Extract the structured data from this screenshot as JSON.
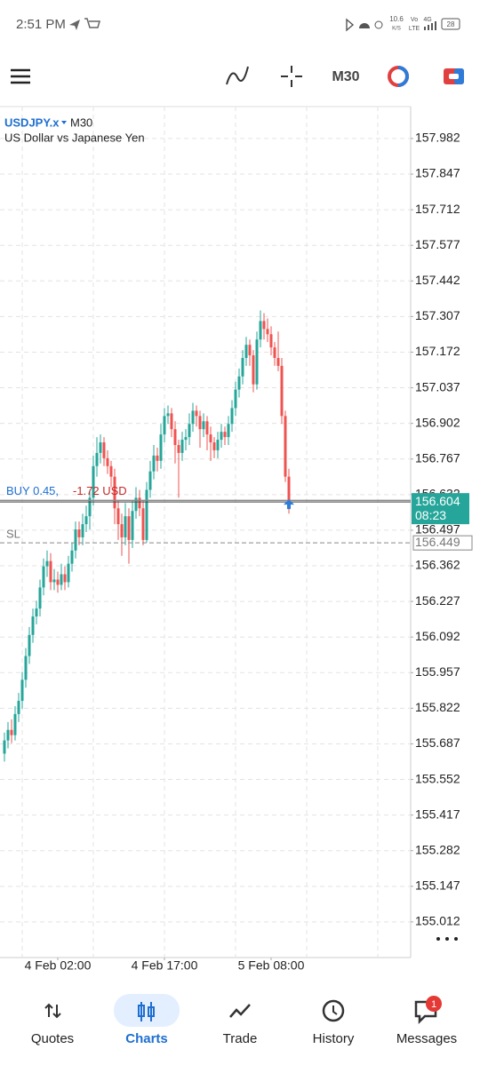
{
  "status_bar": {
    "time": "2:51 PM",
    "speed": "10.6",
    "speed_unit": "K/S",
    "volte_top": "Vo",
    "volte_bottom": "LTE",
    "network": "4G",
    "battery": "28"
  },
  "toolbar": {
    "timeframe": "M30"
  },
  "chart_data": {
    "type": "candlestick",
    "symbol": "USDJPY.x",
    "period": "M30",
    "subtitle": "US Dollar vs Japanese Yen",
    "up_color": "#26a69a",
    "down_color": "#ef5350",
    "grid": true,
    "candles": [
      [
        155.65,
        155.73,
        155.62,
        155.7
      ],
      [
        155.7,
        155.77,
        155.67,
        155.74
      ],
      [
        155.74,
        155.78,
        155.69,
        155.72
      ],
      [
        155.72,
        155.83,
        155.7,
        155.8
      ],
      [
        155.8,
        155.88,
        155.77,
        155.85
      ],
      [
        155.85,
        155.96,
        155.82,
        155.93
      ],
      [
        155.93,
        156.05,
        155.9,
        156.02
      ],
      [
        156.02,
        156.13,
        155.99,
        156.1
      ],
      [
        156.1,
        156.2,
        156.07,
        156.17
      ],
      [
        156.17,
        156.23,
        156.14,
        156.2
      ],
      [
        156.2,
        156.31,
        156.17,
        156.28
      ],
      [
        156.28,
        156.39,
        156.25,
        156.36
      ],
      [
        156.36,
        156.42,
        156.32,
        156.38
      ],
      [
        156.38,
        156.41,
        156.27,
        156.3
      ],
      [
        156.3,
        156.35,
        156.27,
        156.31
      ],
      [
        156.31,
        156.34,
        156.26,
        156.29
      ],
      [
        156.29,
        156.37,
        156.27,
        156.33
      ],
      [
        156.33,
        156.36,
        156.27,
        156.3
      ],
      [
        156.3,
        156.4,
        156.28,
        156.37
      ],
      [
        156.37,
        156.45,
        156.34,
        156.42
      ],
      [
        156.42,
        156.53,
        156.39,
        156.5
      ],
      [
        156.5,
        156.53,
        156.44,
        156.47
      ],
      [
        156.47,
        156.56,
        156.44,
        156.52
      ],
      [
        156.52,
        156.59,
        156.49,
        156.55
      ],
      [
        156.55,
        156.65,
        156.5,
        156.62
      ],
      [
        156.62,
        156.78,
        156.59,
        156.74
      ],
      [
        156.74,
        156.85,
        156.7,
        156.79
      ],
      [
        156.79,
        156.86,
        156.75,
        156.83
      ],
      [
        156.83,
        156.85,
        156.74,
        156.77
      ],
      [
        156.77,
        156.8,
        156.71,
        156.74
      ],
      [
        156.74,
        156.76,
        156.66,
        156.7
      ],
      [
        156.7,
        156.73,
        156.52,
        156.58
      ],
      [
        156.58,
        156.61,
        156.46,
        156.52
      ],
      [
        156.52,
        156.56,
        156.4,
        156.47
      ],
      [
        156.47,
        156.6,
        156.44,
        156.55
      ],
      [
        156.55,
        156.58,
        156.37,
        156.46
      ],
      [
        156.46,
        156.61,
        156.43,
        156.57
      ],
      [
        156.57,
        156.66,
        156.54,
        156.62
      ],
      [
        156.62,
        156.65,
        156.55,
        156.58
      ],
      [
        156.58,
        156.61,
        156.44,
        156.46
      ],
      [
        156.46,
        156.68,
        156.45,
        156.65
      ],
      [
        156.65,
        156.76,
        156.62,
        156.72
      ],
      [
        156.72,
        156.82,
        156.69,
        156.78
      ],
      [
        156.78,
        156.81,
        156.72,
        156.76
      ],
      [
        156.76,
        156.9,
        156.73,
        156.86
      ],
      [
        156.86,
        156.96,
        156.83,
        156.93
      ],
      [
        156.93,
        156.97,
        156.9,
        156.94
      ],
      [
        156.94,
        156.96,
        156.85,
        156.88
      ],
      [
        156.88,
        156.91,
        156.75,
        156.82
      ],
      [
        156.82,
        156.84,
        156.62,
        156.79
      ],
      [
        156.79,
        156.87,
        156.76,
        156.84
      ],
      [
        156.84,
        156.88,
        156.8,
        156.85
      ],
      [
        156.85,
        156.94,
        156.82,
        156.9
      ],
      [
        156.9,
        156.98,
        156.87,
        156.95
      ],
      [
        156.95,
        156.97,
        156.89,
        156.93
      ],
      [
        156.93,
        156.95,
        156.81,
        156.88
      ],
      [
        156.88,
        156.94,
        156.85,
        156.91
      ],
      [
        156.91,
        156.93,
        156.8,
        156.86
      ],
      [
        156.86,
        156.89,
        156.76,
        156.83
      ],
      [
        156.83,
        156.85,
        156.77,
        156.8
      ],
      [
        156.8,
        156.87,
        156.77,
        156.84
      ],
      [
        156.84,
        156.9,
        156.81,
        156.87
      ],
      [
        156.87,
        156.89,
        156.82,
        156.85
      ],
      [
        156.85,
        156.93,
        156.82,
        156.9
      ],
      [
        156.9,
        156.99,
        156.87,
        156.96
      ],
      [
        156.96,
        157.06,
        156.93,
        157.03
      ],
      [
        157.03,
        157.11,
        157.0,
        157.08
      ],
      [
        157.08,
        157.18,
        157.05,
        157.15
      ],
      [
        157.15,
        157.23,
        157.12,
        157.2
      ],
      [
        157.2,
        157.22,
        157.12,
        157.16
      ],
      [
        157.16,
        157.18,
        157.02,
        157.05
      ],
      [
        157.05,
        157.25,
        157.03,
        157.22
      ],
      [
        157.22,
        157.33,
        157.19,
        157.29
      ],
      [
        157.29,
        157.32,
        157.22,
        157.26
      ],
      [
        157.26,
        157.3,
        157.21,
        157.24
      ],
      [
        157.24,
        157.27,
        157.16,
        157.19
      ],
      [
        157.19,
        157.21,
        157.12,
        157.15
      ],
      [
        157.15,
        157.25,
        157.1,
        157.12
      ],
      [
        157.12,
        157.15,
        156.9,
        156.93
      ],
      [
        156.93,
        156.95,
        156.68,
        156.7
      ],
      [
        156.7,
        156.73,
        156.56,
        156.604
      ]
    ],
    "xlim": [
      -1.25,
      114.25
    ],
    "xticks": [
      {
        "value": 15,
        "label": "4 Feb 02:00"
      },
      {
        "value": 45,
        "label": "4 Feb 17:00"
      },
      {
        "value": 75,
        "label": "5 Feb 08:00"
      }
    ],
    "ylim": [
      154.877,
      158.103
    ],
    "yticks": [
      157.982,
      157.847,
      157.712,
      157.577,
      157.442,
      157.307,
      157.172,
      157.037,
      156.902,
      156.767,
      156.632,
      156.497,
      156.362,
      156.227,
      156.092,
      155.957,
      155.822,
      155.687,
      155.552,
      155.417,
      155.282,
      155.147,
      155.012
    ],
    "position": {
      "label": "BUY 0.45,",
      "profit": "-1.72 USD",
      "price": 156.61
    },
    "stop_loss": {
      "label": "SL",
      "value": 156.449,
      "value_label": "156.449"
    },
    "current_price": {
      "value": 156.604,
      "value_label": "156.604",
      "countdown": "08:23"
    }
  },
  "nav": {
    "items": [
      "Quotes",
      "Charts",
      "Trade",
      "History",
      "Messages"
    ],
    "active": "Charts",
    "badge": "1"
  }
}
